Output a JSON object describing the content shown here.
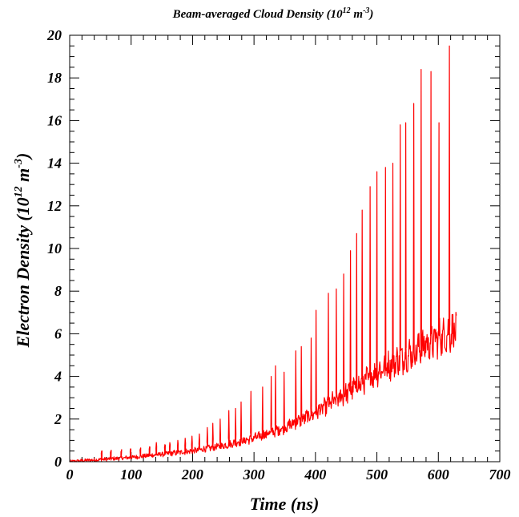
{
  "chart_data": {
    "type": "line",
    "title_parts": {
      "text": "Beam-averaged Cloud Density (10",
      "exp": "12",
      "mid": " m",
      "exp2": "-3",
      "end": ")"
    },
    "xlabel": "Time (ns)",
    "ylabel_parts": {
      "text": "Electron Density (10",
      "exp": "12",
      "mid": " m",
      "exp2": "-3",
      "end": ")"
    },
    "xlim": [
      0,
      700
    ],
    "ylim": [
      0,
      20
    ],
    "x_ticks": [
      "0",
      "100",
      "200",
      "300",
      "400",
      "500",
      "600",
      "700"
    ],
    "y_ticks": [
      "0",
      "2",
      "4",
      "6",
      "8",
      "10",
      "12",
      "14",
      "16",
      "18",
      "20"
    ],
    "grid": false,
    "series": [
      {
        "color": "#ff0000",
        "baseline_x": [
          0,
          20,
          50,
          100,
          150,
          200,
          250,
          300,
          350,
          400,
          450,
          500,
          550,
          600,
          630
        ],
        "baseline_y": [
          0.0,
          0.05,
          0.1,
          0.2,
          0.35,
          0.5,
          0.75,
          1.1,
          1.6,
          2.3,
          3.2,
          4.2,
          5.0,
          5.8,
          6.2
        ],
        "spike_x": [
          52,
          67,
          84,
          99,
          115,
          130,
          141,
          155,
          163,
          176,
          188,
          199,
          211,
          224,
          233,
          245,
          259,
          270,
          279,
          295,
          314,
          328,
          335,
          349,
          368,
          377,
          393,
          401,
          421,
          434,
          446,
          457,
          467,
          476,
          489,
          500,
          514,
          526,
          538,
          547,
          560,
          572,
          588,
          601,
          618
        ],
        "spike_y": [
          0.5,
          0.5,
          0.5,
          0.6,
          0.6,
          0.7,
          0.9,
          0.8,
          0.9,
          1.0,
          1.1,
          1.2,
          1.3,
          1.6,
          1.8,
          2.0,
          2.4,
          2.5,
          2.8,
          3.3,
          3.5,
          4.0,
          4.5,
          4.2,
          5.2,
          5.4,
          5.8,
          7.1,
          7.9,
          8.1,
          8.8,
          9.9,
          10.7,
          11.8,
          12.9,
          13.6,
          13.8,
          14.0,
          15.8,
          15.9,
          16.8,
          18.4,
          18.3,
          15.9,
          19.5
        ]
      }
    ]
  }
}
